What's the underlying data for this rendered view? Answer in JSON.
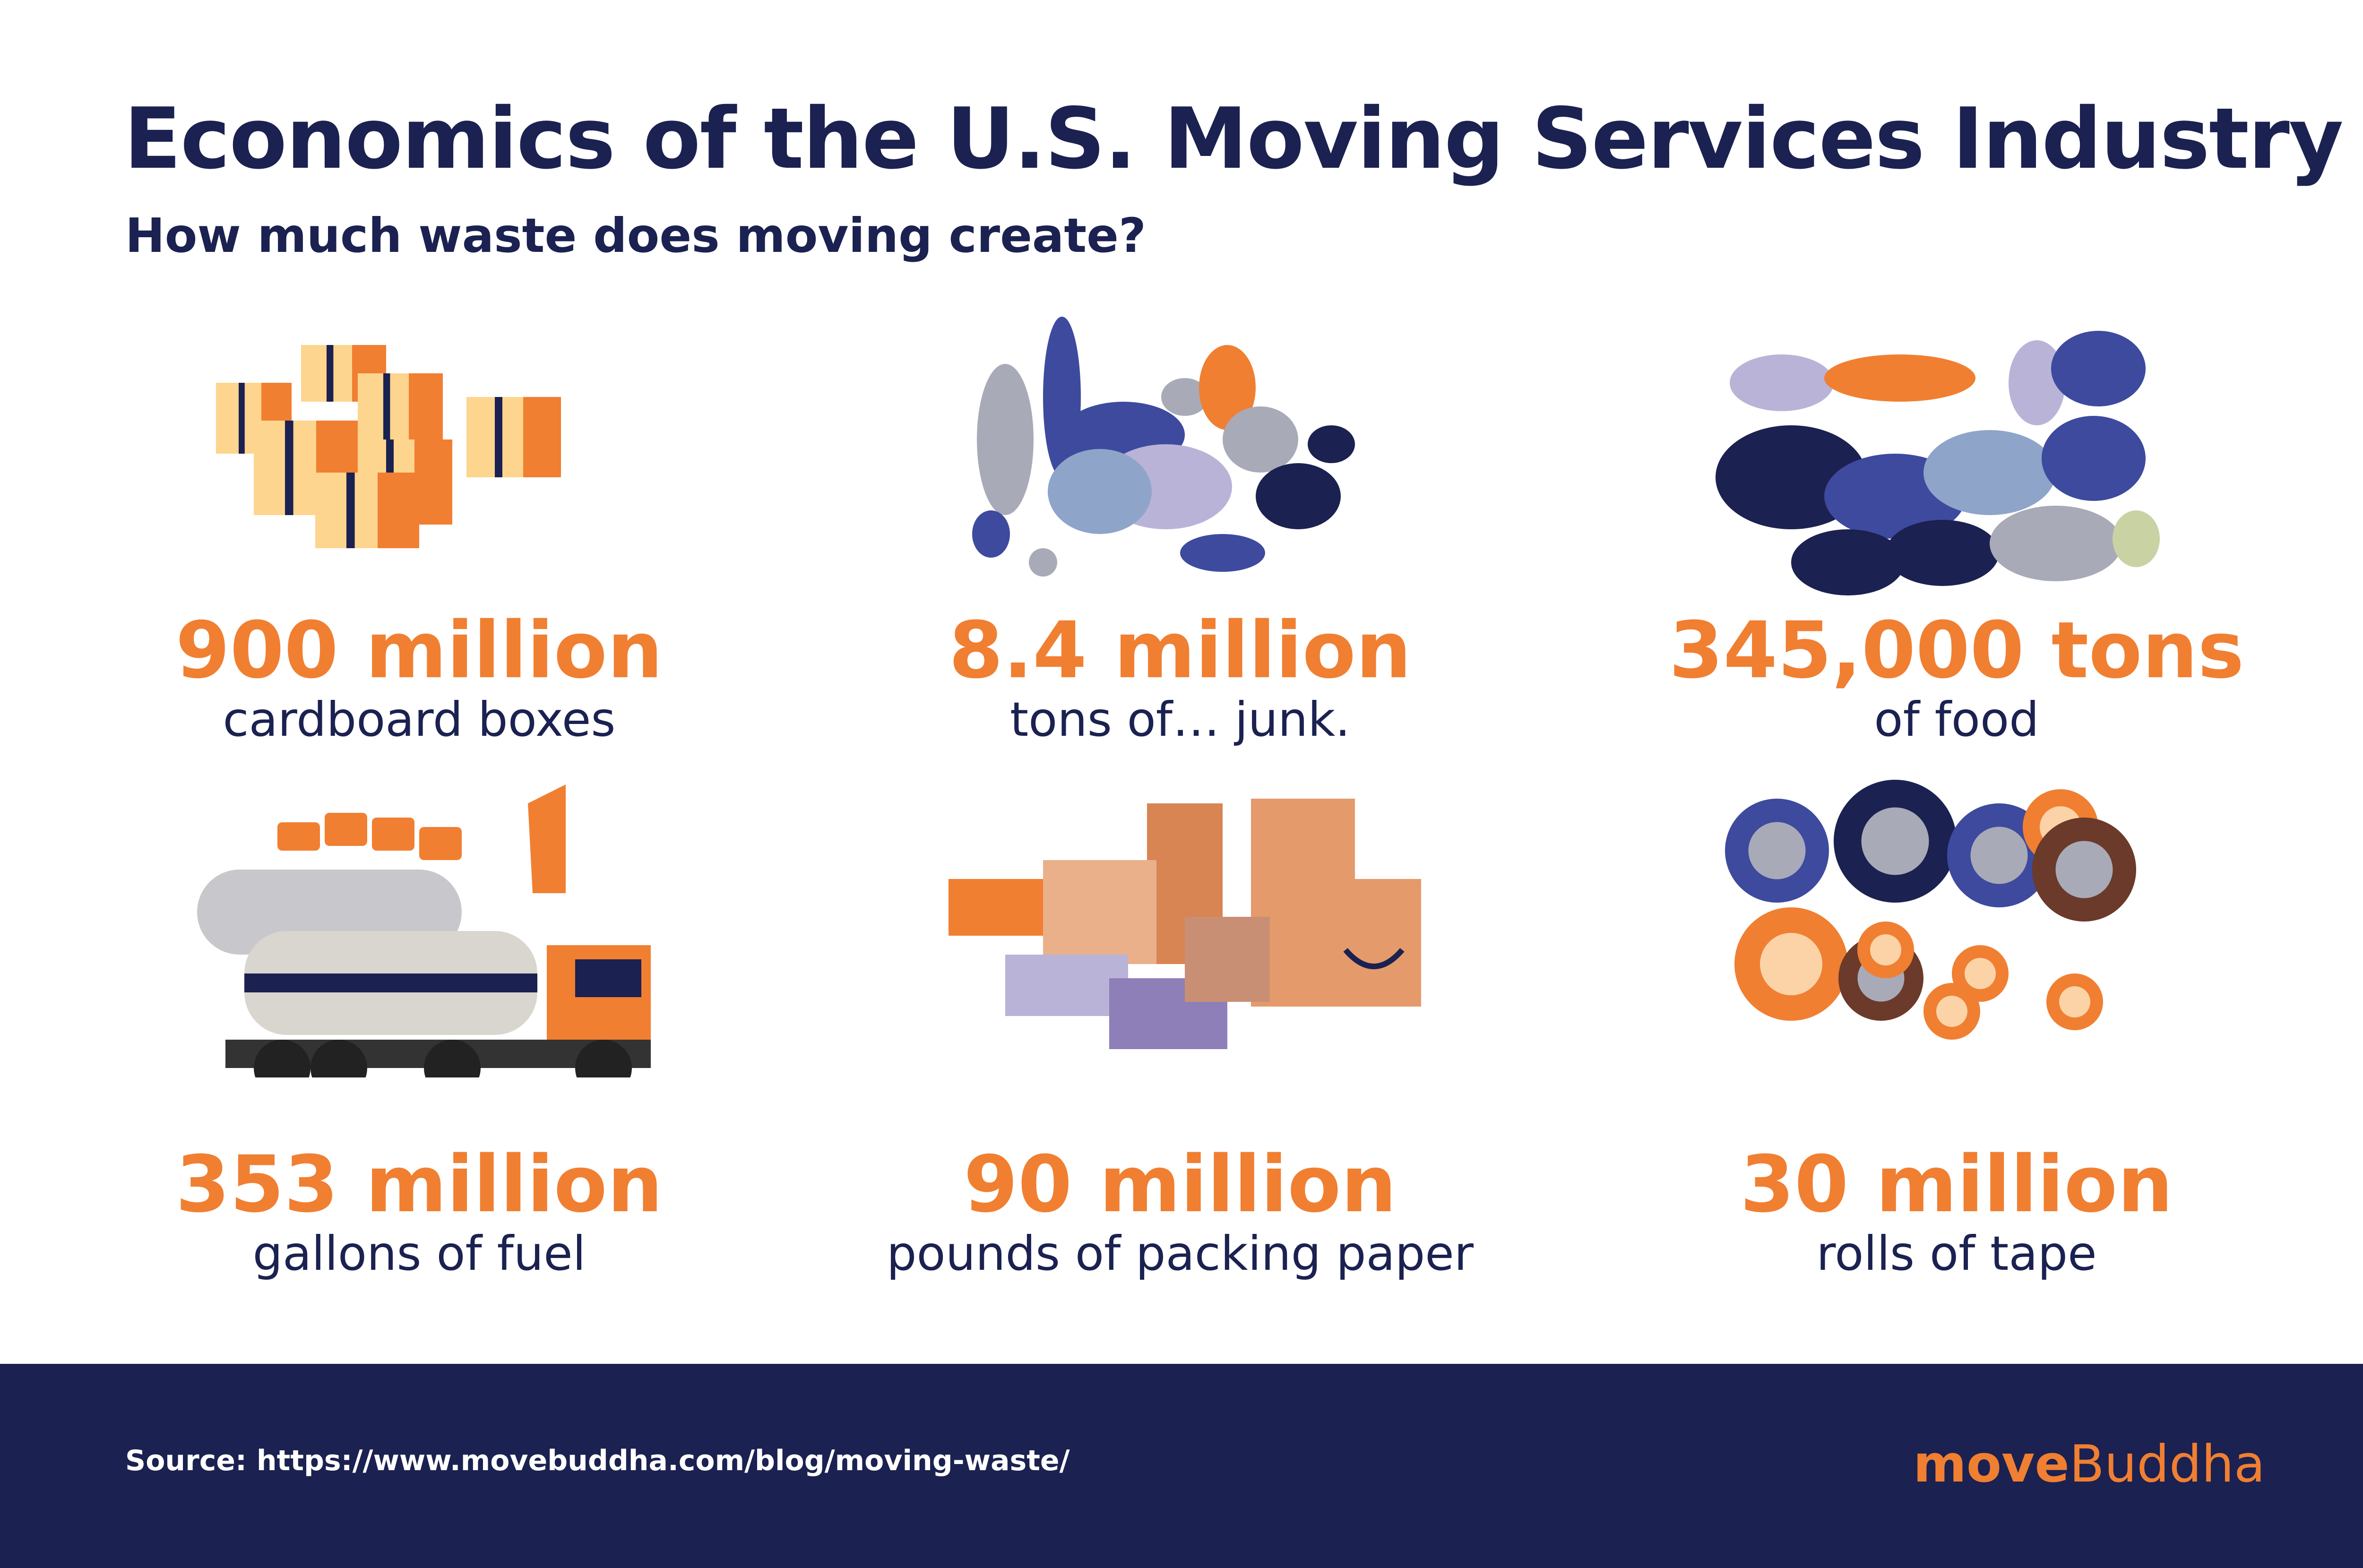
{
  "header": {
    "title": "Economics of the U.S. Moving Services Industry",
    "subtitle": "How much waste does moving create?"
  },
  "stats": [
    {
      "value": "900 million",
      "label": "cardboard boxes"
    },
    {
      "value": "8.4 million",
      "label": "tons of… junk."
    },
    {
      "value": "345,000 tons",
      "label": "of food"
    },
    {
      "value": "353 million",
      "label": "gallons of fuel"
    },
    {
      "value": "90 million",
      "label": "pounds of packing paper"
    },
    {
      "value": "30 million",
      "label": "rolls of tape"
    }
  ],
  "footer": {
    "source": "Source: https://www.movebuddha.com/blog/moving-waste/",
    "brand_prefix": "move",
    "brand_suffix": "Buddha"
  }
}
